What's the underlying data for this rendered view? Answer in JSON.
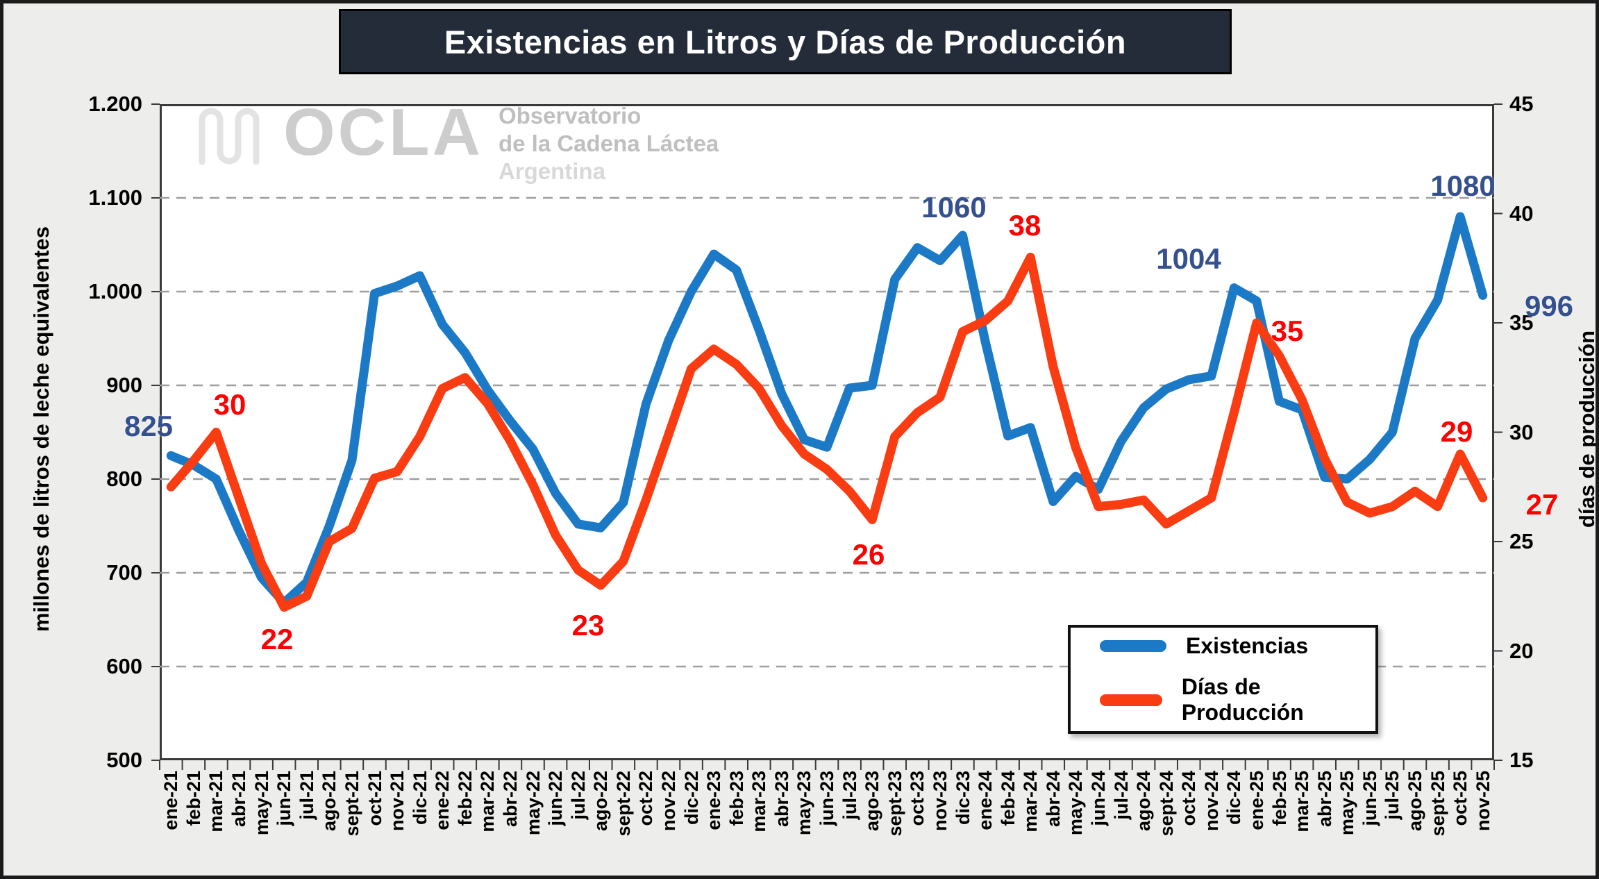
{
  "title": "Existencias en Litros y Días de Producción",
  "watermark": {
    "brand": "OCLA",
    "line1": "Observatorio",
    "line2": "de la Cadena Láctea",
    "line3": "Argentina"
  },
  "legend": {
    "items": [
      {
        "label": "Existencias",
        "color": "#1B79C6"
      },
      {
        "label": "Días de Producción",
        "color": "#F93C12"
      }
    ]
  },
  "chart_data": {
    "type": "line",
    "title": "Existencias en Litros y Días de Producción",
    "grid": "horizontal-dashed",
    "legend_position": "bottom-right-inside",
    "categories": [
      "ene-21",
      "feb-21",
      "mar-21",
      "abr-21",
      "may-21",
      "jun-21",
      "jul-21",
      "ago-21",
      "sept-21",
      "oct-21",
      "nov-21",
      "dic-21",
      "ene-22",
      "feb-22",
      "mar-22",
      "abr-22",
      "may-22",
      "jun-22",
      "jul-22",
      "ago-22",
      "sept-22",
      "oct-22",
      "nov-22",
      "dic-22",
      "ene-23",
      "feb-23",
      "mar-23",
      "abr-23",
      "may-23",
      "jun-23",
      "jul-23",
      "ago-23",
      "sept-23",
      "oct-23",
      "nov-23",
      "dic-23",
      "ene-24",
      "feb-24",
      "mar-24",
      "abr-24",
      "may-24",
      "jun-24",
      "jul-24",
      "ago-24",
      "sept-24",
      "oct-24",
      "nov-24",
      "dic-24",
      "ene-25",
      "feb-25",
      "mar-25",
      "abr-25",
      "may-25",
      "jun-25",
      "jul-25",
      "ago-25",
      "sept-25",
      "oct-25",
      "nov-25"
    ],
    "left_axis": {
      "label": "millones de litros de leche equivalentes",
      "min": 500,
      "max": 1200,
      "tick_labels": [
        "1.200",
        "1.100",
        "1.000",
        "900",
        "800",
        "700",
        "600",
        "500"
      ],
      "tick_values": [
        1200,
        1100,
        1000,
        900,
        800,
        700,
        600,
        500
      ]
    },
    "right_axis": {
      "label": "días de producción",
      "min": 15,
      "max": 45,
      "tick_values": [
        45,
        40,
        35,
        30,
        25,
        20,
        15
      ]
    },
    "series": [
      {
        "name": "Existencias",
        "axis": "left",
        "color": "#1B79C6",
        "values": [
          825,
          815,
          800,
          745,
          695,
          668,
          690,
          750,
          820,
          998,
          1006,
          1017,
          965,
          935,
          895,
          862,
          832,
          785,
          752,
          748,
          775,
          880,
          948,
          1000,
          1040,
          1023,
          959,
          891,
          842,
          834,
          897,
          900,
          1013,
          1047,
          1033,
          1060,
          947,
          846,
          855,
          776,
          803,
          789,
          840,
          876,
          896,
          906,
          910,
          1004,
          990,
          883,
          874,
          802,
          800,
          821,
          850,
          950,
          991,
          1080,
          996
        ]
      },
      {
        "name": "Días de Producción",
        "axis": "right",
        "color": "#F93C12",
        "values": [
          27.5,
          28.7,
          30,
          27,
          24,
          22,
          22.5,
          25,
          25.6,
          27.9,
          28.2,
          29.8,
          32,
          32.5,
          31.3,
          29.6,
          27.6,
          25.3,
          23.7,
          23,
          24.1,
          26.9,
          29.9,
          32.9,
          33.8,
          33.1,
          32,
          30.3,
          29,
          28.3,
          27.3,
          26,
          29.8,
          30.9,
          31.6,
          34.6,
          35.1,
          36,
          38,
          33,
          29.3,
          26.6,
          26.7,
          26.9,
          25.8,
          26.4,
          27,
          30.9,
          35,
          33.5,
          31.5,
          28.8,
          26.8,
          26.3,
          26.6,
          27.3,
          26.6,
          29,
          27
        ]
      }
    ],
    "annotations": [
      {
        "series": "Existencias",
        "month": "ene-21",
        "text": "825",
        "color": "#35508E"
      },
      {
        "series": "Días de Producción",
        "month": "mar-21",
        "text": "30",
        "color": "#FF0000"
      },
      {
        "series": "Días de Producción",
        "month": "jun-21",
        "text": "22",
        "color": "#FF0000"
      },
      {
        "series": "Días de Producción",
        "month": "ago-22",
        "text": "23",
        "color": "#FF0000"
      },
      {
        "series": "Existencias",
        "month": "dic-23",
        "text": "1060",
        "color": "#35508E"
      },
      {
        "series": "Días de Producción",
        "month": "ago-23",
        "text": "26",
        "color": "#FF0000"
      },
      {
        "series": "Días de Producción",
        "month": "mar-24",
        "text": "38",
        "color": "#FF0000"
      },
      {
        "series": "Existencias",
        "month": "dic-24",
        "text": "1004",
        "color": "#35508E"
      },
      {
        "series": "Días de Producción",
        "month": "ene-25",
        "text": "35",
        "color": "#FF0000"
      },
      {
        "series": "Existencias",
        "month": "oct-25",
        "text": "1080",
        "color": "#35508E"
      },
      {
        "series": "Existencias",
        "month": "nov-25",
        "text": "996",
        "color": "#35508E"
      },
      {
        "series": "Días de Producción",
        "month": "oct-25",
        "text": "29",
        "color": "#FF0000"
      },
      {
        "series": "Días de Producción",
        "month": "nov-25",
        "text": "27",
        "color": "#FF0000"
      }
    ]
  }
}
